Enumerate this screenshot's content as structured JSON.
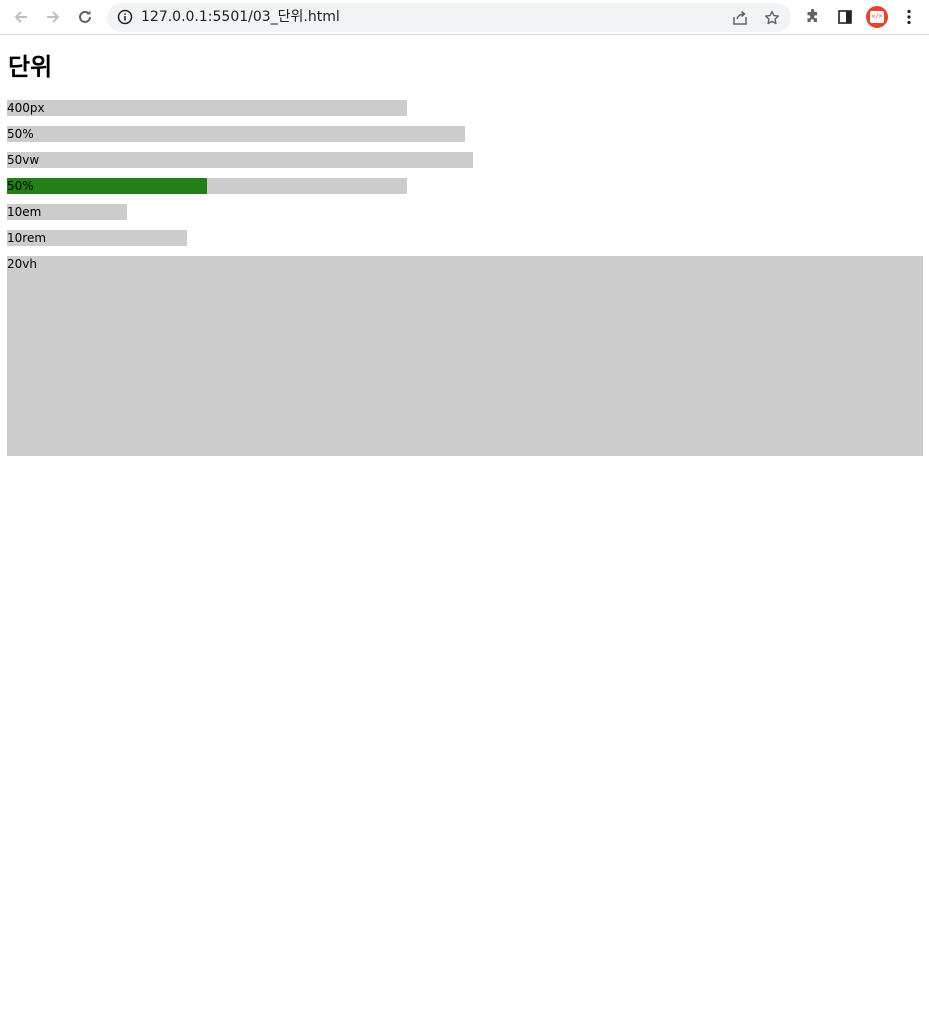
{
  "browser": {
    "url": "127.0.0.1:5501/03_단위.html",
    "icons": [
      "back-arrow-icon",
      "forward-arrow-icon",
      "reload-icon",
      "info-icon",
      "share-icon",
      "star-icon",
      "puzzle-icon",
      "side-panel-icon",
      "profile-avatar-icon",
      "kebab-menu-icon"
    ],
    "profile_badge": "</>"
  },
  "page": {
    "title": "단위",
    "bars": [
      {
        "label": "400px"
      },
      {
        "label": "50%"
      },
      {
        "label": "50vw"
      },
      {
        "label": "50%",
        "fill_fraction": 0.5,
        "fill_color": "#228016"
      },
      {
        "label": "10em"
      },
      {
        "label": "10rem"
      },
      {
        "label": "20vh"
      }
    ],
    "bar_color": "#cccccc"
  }
}
